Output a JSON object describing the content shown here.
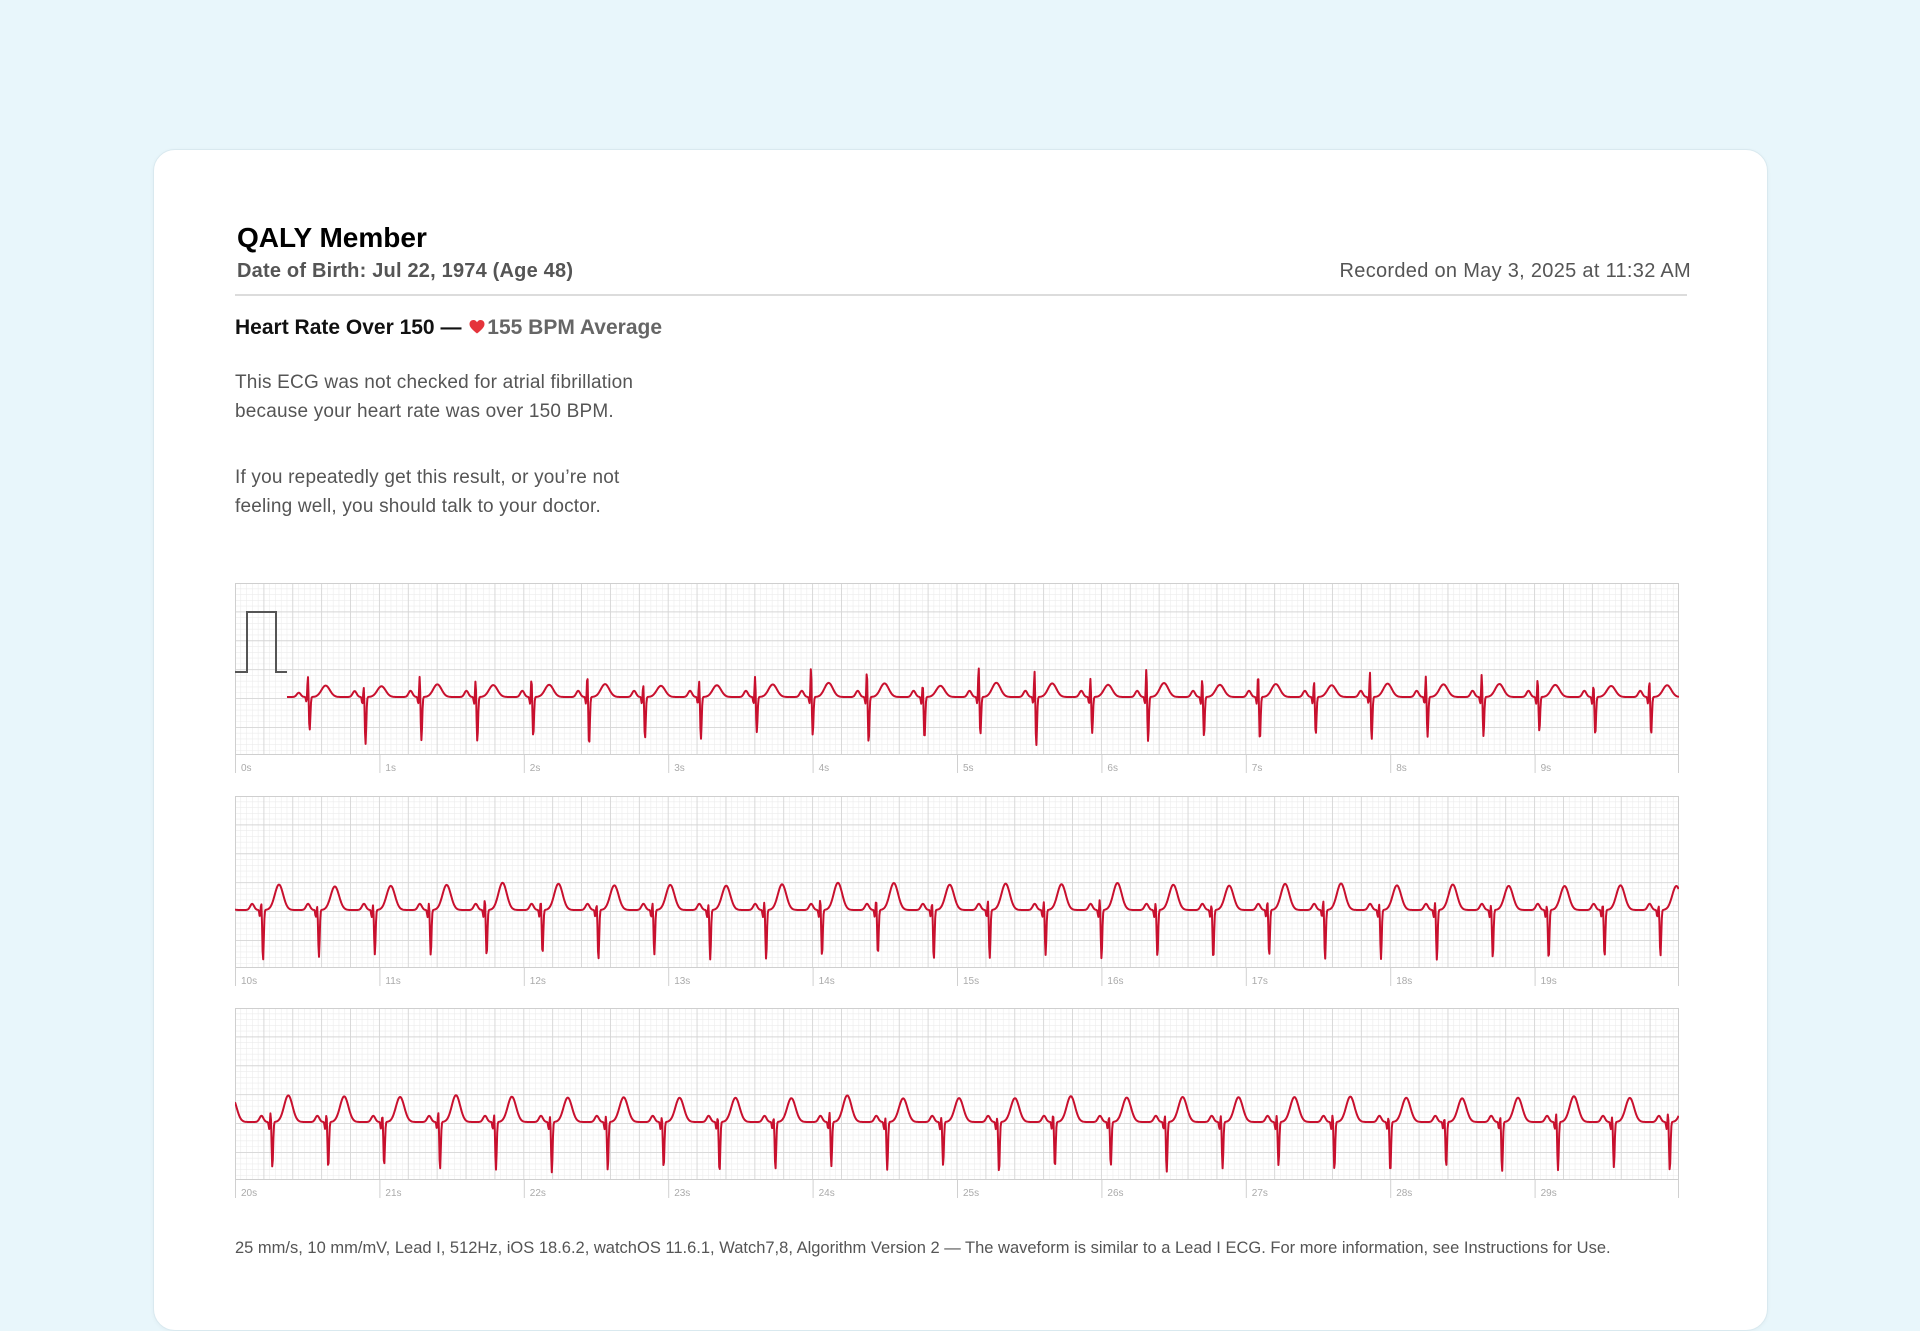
{
  "patient": {
    "name": "QALY Member",
    "dob": "Date of Birth: Jul 22, 1974 (Age 48)",
    "recorded": "Recorded on May 3, 2025 at 11:32 AM"
  },
  "result": {
    "title": "Heart Rate Over 150 —",
    "bpm": "155 BPM",
    "bpm_suffix": "Average",
    "heart_color": "#e5343b",
    "description": "This ECG was not checked for atrial fibrillation because your heart rate was over 150 BPM.",
    "advice": "If you repeatedly get this result, or you’re not feeling well, you should talk to your doctor."
  },
  "chart_data": {
    "type": "line",
    "trace_color": "#c8102e",
    "grid": true,
    "sample_rate": "512Hz",
    "heart_rate_bpm": 155,
    "strips": [
      {
        "start_s": 0,
        "end_s": 10,
        "x_ticks": [
          "0s",
          "1s",
          "2s",
          "3s",
          "4s",
          "5s",
          "6s",
          "7s",
          "8s",
          "9s"
        ],
        "calibration_pulse": true
      },
      {
        "start_s": 10,
        "end_s": 20,
        "x_ticks": [
          "10s",
          "11s",
          "12s",
          "13s",
          "14s",
          "15s",
          "16s",
          "17s",
          "18s",
          "19s"
        ],
        "calibration_pulse": false
      },
      {
        "start_s": 20,
        "end_s": 30,
        "x_ticks": [
          "20s",
          "21s",
          "22s",
          "23s",
          "24s",
          "25s",
          "26s",
          "27s",
          "28s",
          "29s"
        ],
        "calibration_pulse": false
      }
    ]
  },
  "footer": {
    "text": "25 mm/s, 10 mm/mV, Lead I, 512Hz, iOS 18.6.2, watchOS 11.6.1, Watch7,8, Algorithm Version 2 — The waveform is similar to a Lead I ECG. For more information, see Instructions for Use."
  }
}
